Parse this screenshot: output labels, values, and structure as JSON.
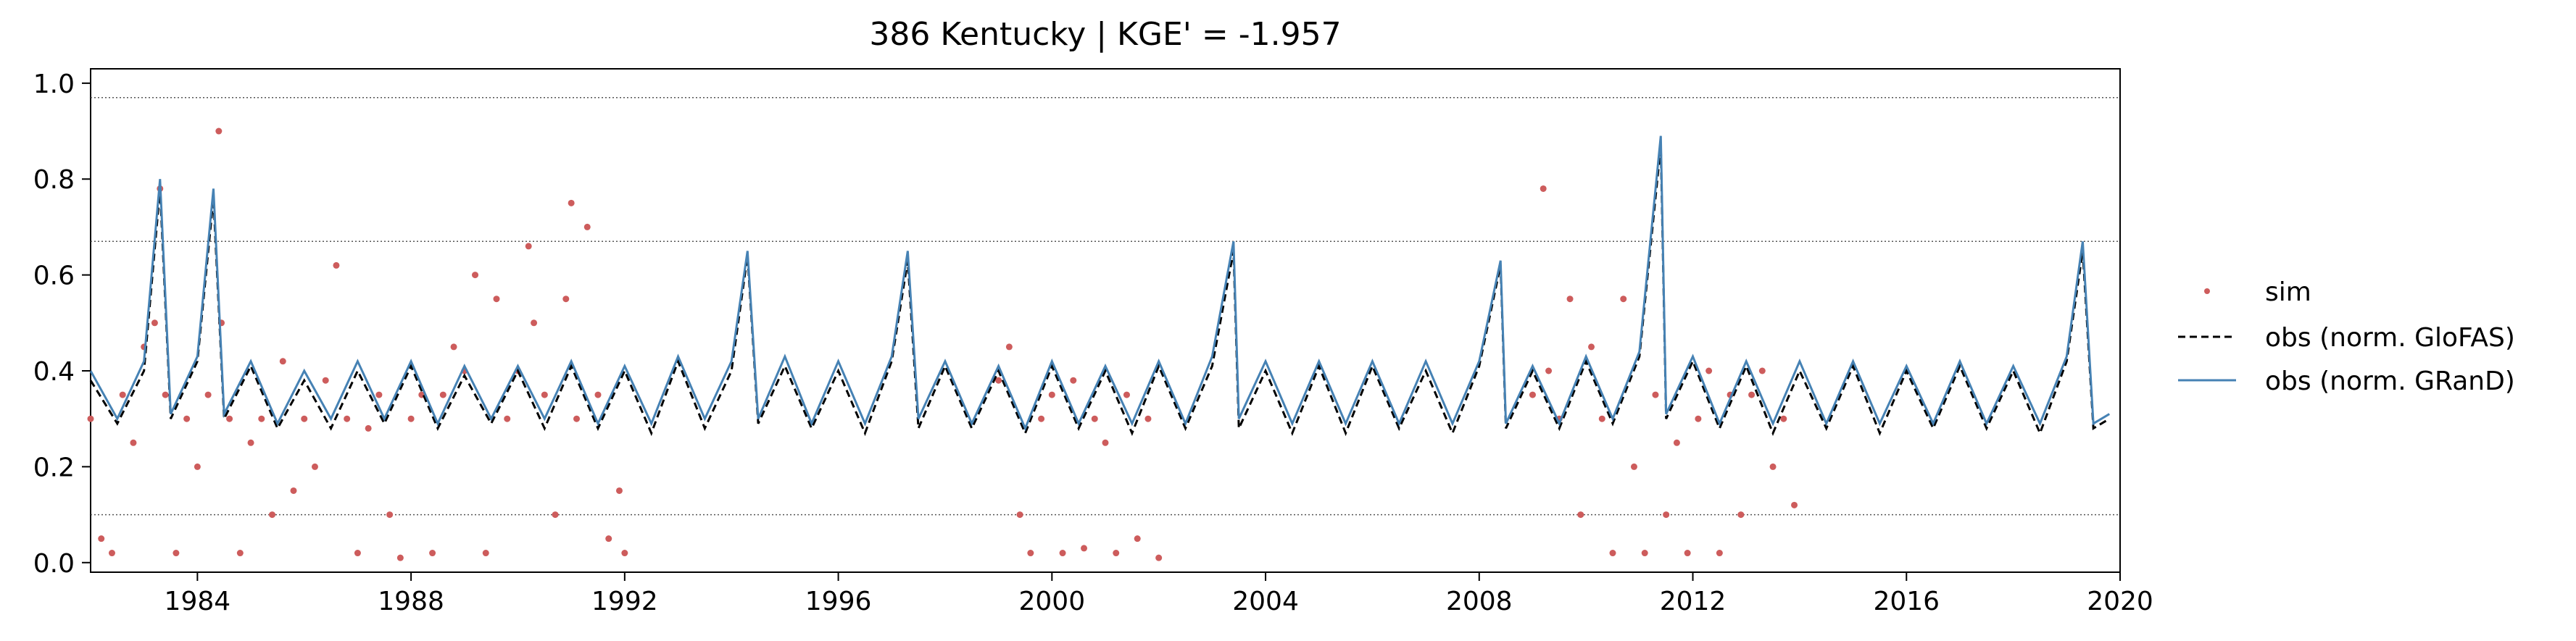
{
  "chart_data": {
    "type": "line",
    "title": "386  Kentucky | KGE' = -1.957",
    "xlabel": "",
    "ylabel": "",
    "xlim": [
      1982.0,
      2020.0
    ],
    "ylim": [
      -0.02,
      1.03
    ],
    "x_ticks": [
      1984,
      1988,
      1992,
      1996,
      2000,
      2004,
      2008,
      2012,
      2016,
      2020
    ],
    "x_tick_labels": [
      "1984",
      "1988",
      "1992",
      "1996",
      "2000",
      "2004",
      "2008",
      "2012",
      "2016",
      "2020"
    ],
    "y_ticks": [
      0.0,
      0.2,
      0.4,
      0.6,
      0.8,
      1.0
    ],
    "y_tick_labels": [
      "0.0",
      "0.2",
      "0.4",
      "0.6",
      "0.8",
      "1.0"
    ],
    "reference_lines": [
      0.97,
      0.67,
      0.1
    ],
    "grid": false,
    "legend_position": "right",
    "colors": {
      "sim": "#cd5c5c",
      "obs_glofas": "#000000",
      "obs_grand": "#4682b4"
    },
    "series": [
      {
        "name": "sim",
        "style": "scatter",
        "x": [
          1982.0,
          1982.2,
          1982.4,
          1982.6,
          1982.8,
          1983.0,
          1983.2,
          1983.3,
          1983.4,
          1983.6,
          1983.8,
          1984.0,
          1984.2,
          1984.4,
          1984.45,
          1984.6,
          1984.8,
          1985.0,
          1985.2,
          1985.4,
          1985.6,
          1985.8,
          1986.0,
          1986.2,
          1986.4,
          1986.6,
          1986.8,
          1987.0,
          1987.2,
          1987.4,
          1987.6,
          1987.8,
          1988.0,
          1988.2,
          1988.4,
          1988.6,
          1988.8,
          1989.0,
          1989.2,
          1989.4,
          1989.6,
          1989.8,
          1990.0,
          1990.2,
          1990.3,
          1990.5,
          1990.7,
          1990.9,
          1991.0,
          1991.1,
          1991.3,
          1991.5,
          1991.7,
          1991.9,
          1992.0,
          1999.0,
          1999.2,
          1999.4,
          1999.6,
          1999.8,
          2000.0,
          2000.2,
          2000.4,
          2000.6,
          2000.8,
          2001.0,
          2001.2,
          2001.4,
          2001.6,
          2001.8,
          2002.0,
          2009.0,
          2009.2,
          2009.3,
          2009.5,
          2009.7,
          2009.9,
          2010.1,
          2010.3,
          2010.5,
          2010.7,
          2010.9,
          2011.1,
          2011.3,
          2011.5,
          2011.7,
          2011.9,
          2012.1,
          2012.3,
          2012.5,
          2012.7,
          2012.9,
          2013.1,
          2013.3,
          2013.5,
          2013.7,
          2013.9
        ],
        "y": [
          0.3,
          0.05,
          0.02,
          0.35,
          0.25,
          0.45,
          0.5,
          0.78,
          0.35,
          0.02,
          0.3,
          0.2,
          0.35,
          0.9,
          0.5,
          0.3,
          0.02,
          0.25,
          0.3,
          0.1,
          0.42,
          0.15,
          0.3,
          0.2,
          0.38,
          0.62,
          0.3,
          0.02,
          0.28,
          0.35,
          0.1,
          0.01,
          0.3,
          0.35,
          0.02,
          0.35,
          0.45,
          0.4,
          0.6,
          0.02,
          0.55,
          0.3,
          0.4,
          0.66,
          0.5,
          0.35,
          0.1,
          0.55,
          0.75,
          0.3,
          0.7,
          0.35,
          0.05,
          0.15,
          0.02,
          0.38,
          0.45,
          0.1,
          0.02,
          0.3,
          0.35,
          0.02,
          0.38,
          0.03,
          0.3,
          0.25,
          0.02,
          0.35,
          0.05,
          0.3,
          0.01,
          0.35,
          0.78,
          0.4,
          0.3,
          0.55,
          0.1,
          0.45,
          0.3,
          0.02,
          0.55,
          0.2,
          0.02,
          0.35,
          0.1,
          0.25,
          0.02,
          0.3,
          0.4,
          0.02,
          0.35,
          0.1,
          0.35,
          0.4,
          0.2,
          0.3,
          0.12
        ]
      },
      {
        "name": "obs (norm. GloFAS)",
        "style": "dashed",
        "x": [
          1982.0,
          1982.5,
          1983.0,
          1983.3,
          1983.5,
          1984.0,
          1984.3,
          1984.5,
          1985.0,
          1985.5,
          1986.0,
          1986.5,
          1987.0,
          1987.5,
          1988.0,
          1988.5,
          1989.0,
          1989.5,
          1990.0,
          1990.5,
          1991.0,
          1991.5,
          1992.0,
          1992.5,
          1993.0,
          1993.5,
          1994.0,
          1994.3,
          1994.5,
          1995.0,
          1995.5,
          1996.0,
          1996.5,
          1997.0,
          1997.3,
          1997.5,
          1998.0,
          1998.5,
          1999.0,
          1999.5,
          2000.0,
          2000.5,
          2001.0,
          2001.5,
          2002.0,
          2002.5,
          2003.0,
          2003.4,
          2003.5,
          2004.0,
          2004.5,
          2005.0,
          2005.5,
          2006.0,
          2006.5,
          2007.0,
          2007.5,
          2008.0,
          2008.4,
          2008.5,
          2009.0,
          2009.5,
          2010.0,
          2010.5,
          2011.0,
          2011.4,
          2011.5,
          2012.0,
          2012.5,
          2013.0,
          2013.5,
          2014.0,
          2014.5,
          2015.0,
          2015.5,
          2016.0,
          2016.5,
          2017.0,
          2017.5,
          2018.0,
          2018.5,
          2019.0,
          2019.3,
          2019.5,
          2019.8
        ],
        "y": [
          0.38,
          0.29,
          0.4,
          0.78,
          0.3,
          0.42,
          0.76,
          0.3,
          0.41,
          0.28,
          0.38,
          0.28,
          0.4,
          0.29,
          0.41,
          0.28,
          0.39,
          0.29,
          0.4,
          0.28,
          0.41,
          0.28,
          0.4,
          0.27,
          0.42,
          0.28,
          0.4,
          0.64,
          0.29,
          0.41,
          0.28,
          0.4,
          0.27,
          0.42,
          0.63,
          0.28,
          0.41,
          0.28,
          0.4,
          0.27,
          0.41,
          0.28,
          0.4,
          0.27,
          0.41,
          0.28,
          0.41,
          0.65,
          0.28,
          0.4,
          0.27,
          0.41,
          0.27,
          0.41,
          0.28,
          0.4,
          0.27,
          0.41,
          0.62,
          0.28,
          0.4,
          0.28,
          0.42,
          0.29,
          0.43,
          0.87,
          0.3,
          0.42,
          0.28,
          0.41,
          0.27,
          0.4,
          0.28,
          0.41,
          0.27,
          0.4,
          0.28,
          0.41,
          0.28,
          0.4,
          0.27,
          0.42,
          0.65,
          0.28,
          0.3
        ]
      },
      {
        "name": "obs (norm. GRanD)",
        "style": "line",
        "x": [
          1982.0,
          1982.5,
          1983.0,
          1983.3,
          1983.5,
          1984.0,
          1984.3,
          1984.5,
          1985.0,
          1985.5,
          1986.0,
          1986.5,
          1987.0,
          1987.5,
          1988.0,
          1988.5,
          1989.0,
          1989.5,
          1990.0,
          1990.5,
          1991.0,
          1991.5,
          1992.0,
          1992.5,
          1993.0,
          1993.5,
          1994.0,
          1994.3,
          1994.5,
          1995.0,
          1995.5,
          1996.0,
          1996.5,
          1997.0,
          1997.3,
          1997.5,
          1998.0,
          1998.5,
          1999.0,
          1999.5,
          2000.0,
          2000.5,
          2001.0,
          2001.5,
          2002.0,
          2002.5,
          2003.0,
          2003.4,
          2003.5,
          2004.0,
          2004.5,
          2005.0,
          2005.5,
          2006.0,
          2006.5,
          2007.0,
          2007.5,
          2008.0,
          2008.4,
          2008.5,
          2009.0,
          2009.5,
          2010.0,
          2010.5,
          2011.0,
          2011.4,
          2011.5,
          2012.0,
          2012.5,
          2013.0,
          2013.5,
          2014.0,
          2014.5,
          2015.0,
          2015.5,
          2016.0,
          2016.5,
          2017.0,
          2017.5,
          2018.0,
          2018.5,
          2019.0,
          2019.3,
          2019.5,
          2019.8
        ],
        "y": [
          0.4,
          0.3,
          0.42,
          0.8,
          0.31,
          0.43,
          0.78,
          0.31,
          0.42,
          0.29,
          0.4,
          0.3,
          0.42,
          0.3,
          0.42,
          0.29,
          0.41,
          0.3,
          0.41,
          0.3,
          0.42,
          0.29,
          0.41,
          0.29,
          0.43,
          0.3,
          0.42,
          0.65,
          0.3,
          0.43,
          0.29,
          0.42,
          0.29,
          0.43,
          0.65,
          0.3,
          0.42,
          0.29,
          0.41,
          0.28,
          0.42,
          0.29,
          0.41,
          0.29,
          0.42,
          0.29,
          0.43,
          0.67,
          0.3,
          0.42,
          0.29,
          0.42,
          0.29,
          0.42,
          0.29,
          0.42,
          0.29,
          0.42,
          0.63,
          0.29,
          0.41,
          0.29,
          0.43,
          0.3,
          0.44,
          0.89,
          0.31,
          0.43,
          0.29,
          0.42,
          0.29,
          0.42,
          0.29,
          0.42,
          0.29,
          0.41,
          0.29,
          0.42,
          0.29,
          0.41,
          0.29,
          0.43,
          0.67,
          0.29,
          0.31
        ]
      }
    ]
  }
}
